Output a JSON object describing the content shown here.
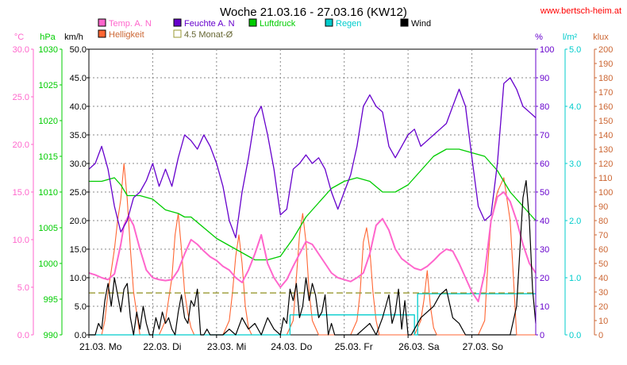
{
  "chart_data": {
    "type": "line",
    "title": "Woche 21.03.16 - 27.03.16 (KW12)",
    "source": "www.bertsch-heim.at",
    "x_axis": {
      "labels": [
        "21.03.  Mo",
        "22.03.  Di",
        "23.03.  Mi",
        "24.03.  Do",
        "25.03.  Fr",
        "26.03.  Sa",
        "27.03.  So"
      ],
      "range_days": [
        0,
        7
      ]
    },
    "axes": [
      {
        "id": "temp",
        "unit": "°C",
        "color": "#ff66cc",
        "min": 0,
        "max": 30,
        "ticks": [
          "0.0",
          "5.0",
          "10.0",
          "15.0",
          "20.0",
          "25.0",
          "30.0"
        ]
      },
      {
        "id": "press",
        "unit": "hPa",
        "color": "#00cc00",
        "min": 990,
        "max": 1030,
        "ticks": [
          "990",
          "995",
          "1000",
          "1005",
          "1010",
          "1015",
          "1020",
          "1025",
          "1030"
        ]
      },
      {
        "id": "wind",
        "unit": "km/h",
        "color": "#000000",
        "min": 0,
        "max": 50,
        "ticks": [
          "0.0",
          "5.0",
          "10.0",
          "15.0",
          "20.0",
          "25.0",
          "30.0",
          "35.0",
          "40.0",
          "45.0",
          "50.0"
        ]
      },
      {
        "id": "hum",
        "unit": "%",
        "color": "#6600cc",
        "min": 0,
        "max": 100,
        "ticks": [
          "0",
          "10",
          "20",
          "30",
          "40",
          "50",
          "60",
          "70",
          "80",
          "90",
          "100"
        ]
      },
      {
        "id": "rain",
        "unit": "l/m²",
        "color": "#00cccc",
        "min": 0,
        "max": 5,
        "ticks": [
          "0.0",
          "1.0",
          "2.0",
          "3.0",
          "4.0",
          "5.0"
        ]
      },
      {
        "id": "lux",
        "unit": "klux",
        "color": "#cc6633",
        "min": 0,
        "max": 200,
        "ticks": [
          "0",
          "10",
          "20",
          "30",
          "40",
          "50",
          "60",
          "70",
          "80",
          "90",
          "100",
          "110",
          "120",
          "130",
          "140",
          "150",
          "160",
          "170",
          "180",
          "190",
          "200"
        ]
      }
    ],
    "legend": [
      {
        "name": "Temp. A. N",
        "color": "#ff66cc"
      },
      {
        "name": "Feuchte A. N",
        "color": "#6600cc"
      },
      {
        "name": "Luftdruck",
        "color": "#00cc00"
      },
      {
        "name": "Regen",
        "color": "#00cccc"
      },
      {
        "name": "Wind",
        "color": "#000000"
      },
      {
        "name": "Helligkeit",
        "color": "#ff6633"
      },
      {
        "name": "4.5 Monat-Ø",
        "color": "#999933"
      }
    ],
    "series": [
      {
        "name": "Temp. A. N",
        "axis": "temp",
        "color": "#ff66cc",
        "x": [
          0,
          0.1,
          0.2,
          0.3,
          0.4,
          0.5,
          0.55,
          0.62,
          0.7,
          0.8,
          0.9,
          1,
          1.1,
          1.2,
          1.3,
          1.4,
          1.5,
          1.6,
          1.7,
          1.8,
          1.9,
          2,
          2.1,
          2.2,
          2.3,
          2.4,
          2.5,
          2.6,
          2.7,
          2.8,
          2.9,
          3,
          3.1,
          3.2,
          3.3,
          3.4,
          3.5,
          3.6,
          3.7,
          3.8,
          3.9,
          4,
          4.1,
          4.2,
          4.3,
          4.4,
          4.5,
          4.6,
          4.7,
          4.8,
          4.9,
          5,
          5.1,
          5.2,
          5.3,
          5.4,
          5.5,
          5.6,
          5.7,
          5.8,
          5.9,
          6,
          6.1,
          6.2,
          6.3,
          6.4,
          6.5,
          6.6,
          6.7,
          6.8,
          6.9,
          7
        ],
        "y": [
          6.5,
          6.3,
          6.0,
          5.8,
          6.4,
          9.5,
          11.5,
          12.5,
          11.5,
          9.0,
          6.8,
          6.0,
          5.8,
          5.7,
          5.8,
          6.8,
          8.5,
          10.0,
          9.5,
          8.8,
          8.2,
          7.8,
          7.2,
          6.8,
          6.0,
          5.5,
          6.8,
          8.5,
          10.5,
          7.5,
          6.0,
          5.0,
          5.8,
          7.2,
          8.5,
          9.8,
          9.5,
          8.5,
          7.5,
          6.5,
          6.0,
          5.8,
          5.6,
          6.0,
          6.5,
          8.5,
          11.5,
          12.2,
          11.0,
          9.0,
          8.0,
          7.5,
          7.0,
          6.8,
          7.2,
          7.8,
          8.5,
          9.0,
          8.8,
          7.5,
          6.0,
          4.5,
          3.5,
          6.5,
          12.0,
          14.5,
          15.0,
          14.0,
          12.0,
          9.5,
          7.5,
          6.5
        ]
      },
      {
        "name": "Feuchte A. N",
        "axis": "hum",
        "color": "#6600cc",
        "x": [
          0,
          0.1,
          0.2,
          0.3,
          0.4,
          0.5,
          0.6,
          0.7,
          0.8,
          0.9,
          1,
          1.1,
          1.2,
          1.3,
          1.4,
          1.5,
          1.6,
          1.7,
          1.8,
          1.9,
          2,
          2.1,
          2.2,
          2.3,
          2.4,
          2.5,
          2.6,
          2.7,
          2.8,
          2.9,
          3,
          3.1,
          3.2,
          3.3,
          3.4,
          3.5,
          3.6,
          3.7,
          3.8,
          3.9,
          4,
          4.1,
          4.2,
          4.3,
          4.4,
          4.5,
          4.6,
          4.7,
          4.8,
          4.9,
          5,
          5.1,
          5.2,
          5.3,
          5.4,
          5.5,
          5.6,
          5.7,
          5.8,
          5.9,
          6,
          6.1,
          6.2,
          6.3,
          6.4,
          6.5,
          6.6,
          6.7,
          6.8,
          6.9,
          7
        ],
        "y": [
          58,
          60,
          66,
          58,
          45,
          36,
          40,
          48,
          50,
          54,
          60,
          52,
          58,
          52,
          62,
          70,
          68,
          65,
          70,
          66,
          60,
          52,
          40,
          34,
          50,
          62,
          76,
          80,
          70,
          58,
          42,
          44,
          58,
          60,
          63,
          60,
          62,
          58,
          50,
          44,
          50,
          56,
          66,
          80,
          84,
          80,
          78,
          66,
          62,
          66,
          70,
          72,
          66,
          68,
          70,
          72,
          74,
          80,
          86,
          80,
          62,
          45,
          40,
          42,
          60,
          88,
          90,
          86,
          80,
          78,
          76
        ]
      },
      {
        "name": "Luftdruck",
        "axis": "press",
        "color": "#00cc00",
        "x": [
          0,
          0.2,
          0.4,
          0.5,
          0.6,
          0.8,
          1,
          1.2,
          1.4,
          1.5,
          1.6,
          1.8,
          2,
          2.2,
          2.4,
          2.6,
          2.8,
          3,
          3.2,
          3.4,
          3.6,
          3.8,
          4,
          4.2,
          4.4,
          4.6,
          4.8,
          5,
          5.2,
          5.4,
          5.6,
          5.8,
          6,
          6.2,
          6.4,
          6.6,
          6.8,
          7
        ],
        "y": [
          1011.5,
          1011.5,
          1012,
          1011,
          1009.5,
          1009.5,
          1009,
          1007.5,
          1007,
          1006.5,
          1006.5,
          1005,
          1003.5,
          1002.5,
          1001.5,
          1000.5,
          1000.5,
          1001,
          1003.5,
          1006.5,
          1008.5,
          1010.5,
          1011.5,
          1012,
          1011.5,
          1010,
          1010,
          1011,
          1013,
          1015,
          1016,
          1016,
          1015.5,
          1015,
          1013,
          1010,
          1008,
          1006
        ]
      },
      {
        "name": "Wind",
        "axis": "wind",
        "color": "#000000",
        "x": [
          0,
          0.1,
          0.15,
          0.2,
          0.25,
          0.3,
          0.35,
          0.4,
          0.45,
          0.5,
          0.55,
          0.6,
          0.65,
          0.7,
          0.75,
          0.8,
          0.85,
          0.9,
          0.95,
          1,
          1.05,
          1.1,
          1.15,
          1.2,
          1.25,
          1.3,
          1.35,
          1.4,
          1.45,
          1.5,
          1.55,
          1.6,
          1.65,
          1.7,
          1.75,
          1.8,
          1.85,
          1.9,
          1.95,
          2,
          2.1,
          2.2,
          2.3,
          2.4,
          2.5,
          2.6,
          2.7,
          2.8,
          2.9,
          3,
          3.05,
          3.1,
          3.15,
          3.2,
          3.25,
          3.3,
          3.35,
          3.4,
          3.45,
          3.5,
          3.55,
          3.6,
          3.65,
          3.7,
          3.75,
          3.8,
          3.85,
          3.9,
          4,
          4.1,
          4.2,
          4.3,
          4.4,
          4.5,
          4.6,
          4.65,
          4.7,
          4.75,
          4.8,
          4.85,
          4.9,
          4.95,
          5,
          5.05,
          5.1,
          5.2,
          5.3,
          5.4,
          5.5,
          5.6,
          5.7,
          5.8,
          5.9,
          6,
          6.1,
          6.2,
          6.3,
          6.4,
          6.5,
          6.6,
          6.7,
          6.8,
          6.85,
          6.9,
          6.95,
          7
        ],
        "y": [
          0,
          0,
          2,
          1,
          6,
          9,
          5,
          10,
          7,
          4,
          8,
          9,
          3,
          0,
          4,
          1,
          5,
          2,
          0,
          0,
          3,
          1,
          4,
          2,
          3,
          1,
          0,
          4,
          7,
          3,
          2,
          6,
          5,
          8,
          0,
          0,
          1,
          0,
          0,
          0,
          0,
          1,
          0,
          3,
          1,
          2,
          0,
          3,
          1,
          0,
          3,
          2,
          8,
          6,
          9,
          3,
          5,
          10,
          6,
          9,
          7,
          3,
          4,
          7,
          0,
          2,
          0,
          0,
          0,
          0,
          0,
          1,
          2,
          0,
          3,
          5,
          7,
          2,
          4,
          8,
          1,
          6,
          0,
          0,
          1,
          3,
          4,
          5,
          7,
          8,
          3,
          2,
          0,
          0,
          0,
          0,
          0,
          0,
          0,
          0,
          5,
          24,
          27,
          20,
          8,
          2
        ]
      },
      {
        "name": "Helligkeit",
        "axis": "lux",
        "color": "#ff6633",
        "x": [
          0,
          0.2,
          0.25,
          0.3,
          0.35,
          0.4,
          0.45,
          0.5,
          0.55,
          0.6,
          0.65,
          0.7,
          0.75,
          0.8,
          0.9,
          1,
          1.1,
          1.2,
          1.25,
          1.3,
          1.35,
          1.4,
          1.45,
          1.5,
          1.55,
          1.6,
          1.65,
          1.7,
          1.8,
          1.9,
          2,
          2.1,
          2.2,
          2.25,
          2.3,
          2.35,
          2.4,
          2.45,
          2.5,
          2.55,
          2.6,
          2.7,
          2.8,
          2.9,
          3,
          3.1,
          3.2,
          3.25,
          3.3,
          3.35,
          3.4,
          3.45,
          3.5,
          3.55,
          3.6,
          3.7,
          3.8,
          3.9,
          4,
          4.1,
          4.2,
          4.25,
          4.3,
          4.35,
          4.4,
          4.45,
          4.5,
          4.55,
          4.6,
          4.7,
          4.8,
          4.9,
          5,
          5.1,
          5.2,
          5.25,
          5.3,
          5.35,
          5.4,
          5.45,
          5.5,
          5.55,
          5.6,
          5.7,
          5.8,
          5.9,
          6,
          6.1,
          6.2,
          6.25,
          6.3,
          6.4,
          6.5,
          6.55,
          6.6,
          6.65,
          6.7,
          6.8,
          6.9,
          7
        ],
        "y": [
          0,
          0,
          10,
          30,
          45,
          60,
          80,
          95,
          120,
          95,
          60,
          30,
          15,
          0,
          0,
          0,
          0,
          10,
          25,
          40,
          70,
          85,
          60,
          30,
          15,
          5,
          0,
          0,
          0,
          0,
          0,
          0,
          10,
          30,
          55,
          70,
          50,
          20,
          5,
          0,
          0,
          0,
          0,
          0,
          0,
          0,
          10,
          40,
          70,
          85,
          65,
          30,
          10,
          5,
          0,
          0,
          0,
          0,
          0,
          0,
          10,
          30,
          65,
          75,
          60,
          30,
          10,
          0,
          0,
          0,
          0,
          0,
          0,
          0,
          10,
          25,
          45,
          20,
          5,
          0,
          0,
          0,
          0,
          0,
          0,
          0,
          0,
          0,
          10,
          50,
          80,
          100,
          110,
          95,
          80,
          40,
          0,
          0,
          0,
          0
        ]
      },
      {
        "name": "Regen",
        "axis": "rain",
        "color": "#00cccc",
        "x": [
          0,
          3.05,
          3.15,
          3.15,
          5.1,
          5.1,
          5.15,
          5.15,
          7
        ],
        "y": [
          0,
          0,
          0,
          0.35,
          0.35,
          0,
          0,
          0.72,
          0.72
        ]
      },
      {
        "name": "4.5 Monat-Ø",
        "axis": "temp",
        "color": "#999933",
        "x": [
          0,
          7
        ],
        "y": [
          4.4,
          4.4
        ]
      }
    ]
  }
}
